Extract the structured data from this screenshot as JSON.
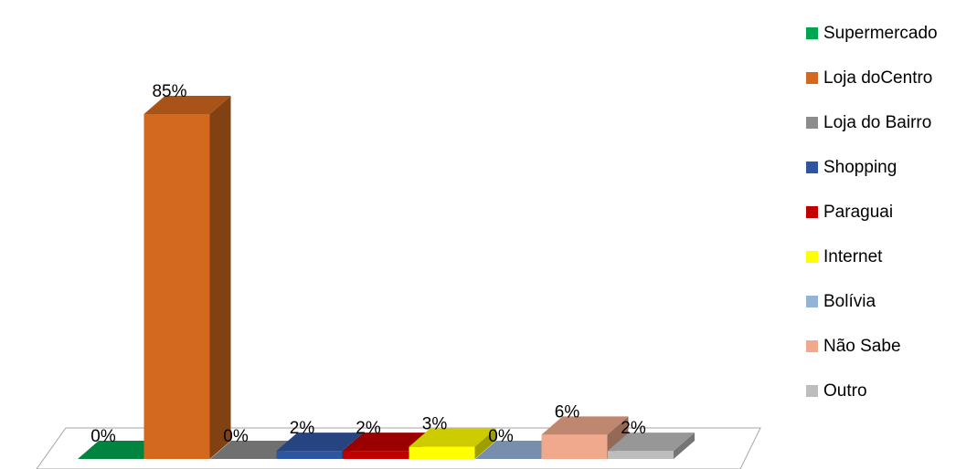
{
  "chart_data": {
    "type": "bar",
    "title": "",
    "xlabel": "",
    "ylabel": "",
    "ylim": [
      0,
      100
    ],
    "grid": false,
    "legend_position": "right",
    "categories": [
      "Supermercado",
      "Loja doCentro",
      "Loja do Bairro",
      "Shopping",
      "Paraguai",
      "Internet",
      "Bolívia",
      "Não Sabe",
      "Outro"
    ],
    "values": [
      0,
      85,
      0,
      2,
      2,
      3,
      0,
      6,
      2
    ],
    "data_labels": [
      "0%",
      "85%",
      "0%",
      "2%",
      "2%",
      "3%",
      "0%",
      "6%",
      "2%"
    ],
    "colors": [
      "#00A550",
      "#D2691E",
      "#8C8C8C",
      "#2E55A0",
      "#C00000",
      "#FFFF00",
      "#95B3D7",
      "#F0A98C",
      "#BDBDBD"
    ]
  }
}
